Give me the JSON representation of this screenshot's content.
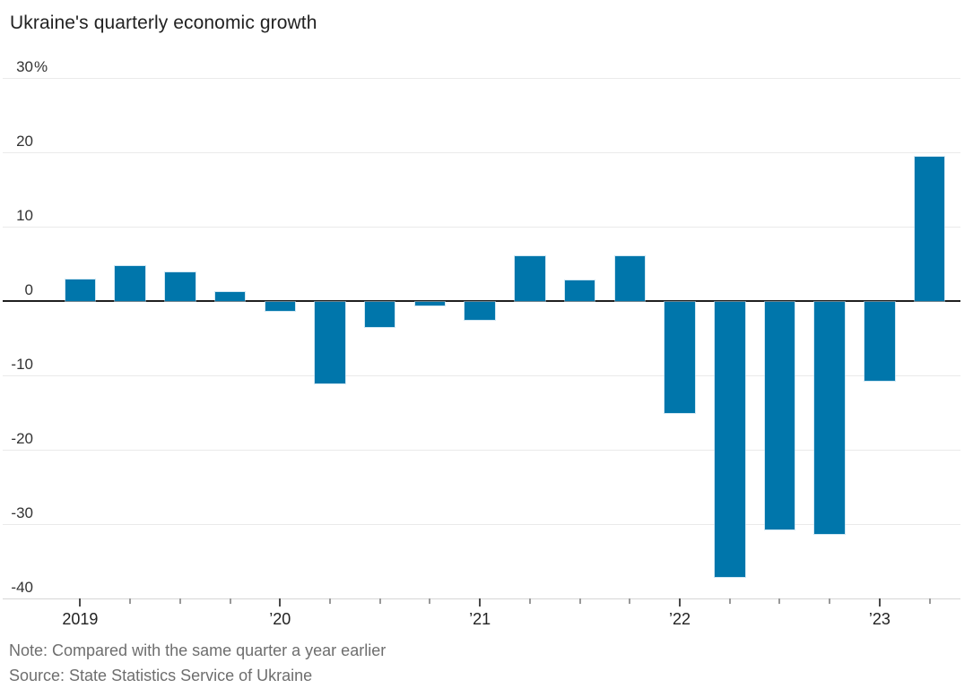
{
  "header": {
    "title": "Ukraine's quarterly economic growth"
  },
  "footer": {
    "note": "Note: Compared with the same quarter a year earlier",
    "source": "Source: State Statistics Service of Ukraine"
  },
  "chart_data": {
    "type": "bar",
    "title": "Ukraine's quarterly economic growth",
    "unit": "percent, year-over-year",
    "categories": [
      "2019 Q1",
      "2019 Q2",
      "2019 Q3",
      "2019 Q4",
      "2020 Q1",
      "2020 Q2",
      "2020 Q3",
      "2020 Q4",
      "2021 Q1",
      "2021 Q2",
      "2021 Q3",
      "2021 Q4",
      "2022 Q1",
      "2022 Q2",
      "2022 Q3",
      "2022 Q4",
      "2023 Q1",
      "2023 Q2"
    ],
    "values": [
      2.9,
      4.7,
      3.8,
      1.2,
      -1.3,
      -11.0,
      -3.4,
      -0.5,
      -2.4,
      6.0,
      2.7,
      6.0,
      -15.0,
      -37.0,
      -30.7,
      -31.3,
      -10.6,
      19.4
    ],
    "ylim": [
      -40,
      30
    ],
    "y_ticks": [
      30,
      20,
      10,
      0,
      -10,
      -20,
      -30,
      -40
    ],
    "y_tick_labels": [
      {
        "num": "30",
        "suffix": "%"
      },
      {
        "num": "20",
        "suffix": ""
      },
      {
        "num": "10",
        "suffix": ""
      },
      {
        "num": "0",
        "suffix": ""
      },
      {
        "num": "-10",
        "suffix": ""
      },
      {
        "num": "-20",
        "suffix": ""
      },
      {
        "num": "-30",
        "suffix": ""
      },
      {
        "num": "-40",
        "suffix": ""
      }
    ],
    "x_year_labels": [
      {
        "label": "2019",
        "index": 0
      },
      {
        "label": "’20",
        "index": 4
      },
      {
        "label": "’21",
        "index": 8
      },
      {
        "label": "’22",
        "index": 12
      },
      {
        "label": "’23",
        "index": 16
      }
    ],
    "grid": "horizontal",
    "legend": "none",
    "bar_color": "#0076AB",
    "zero_line_color": "#1f1f1f",
    "gridline_color": "#eaeaea",
    "note": "Note: Compared with the same quarter a year earlier",
    "source": "Source: State Statistics Service of Ukraine"
  }
}
